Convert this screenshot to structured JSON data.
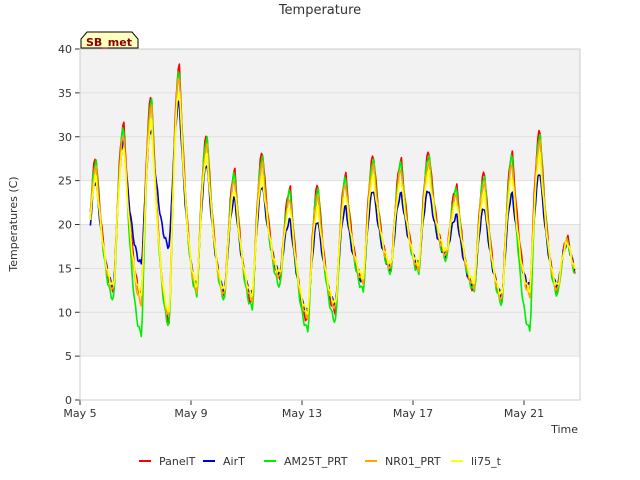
{
  "chart_data": {
    "type": "line",
    "title": "Temperature",
    "xlabel": "Time",
    "ylabel": "Temperatures (C)",
    "site_badge": "SB_met",
    "ylim": [
      0,
      40
    ],
    "yticks": [
      0,
      5,
      10,
      15,
      20,
      25,
      30,
      35,
      40
    ],
    "xlim": [
      "2021-05-05",
      "2021-05-23"
    ],
    "xticks": [
      {
        "date": "2021-05-05",
        "label": "May 5"
      },
      {
        "date": "2021-05-09",
        "label": "May 9"
      },
      {
        "date": "2021-05-13",
        "label": "May 13"
      },
      {
        "date": "2021-05-17",
        "label": "May 17"
      },
      {
        "date": "2021-05-21",
        "label": "May 21"
      }
    ],
    "grid": "alternating horizontal bands",
    "legend_position": "bottom",
    "x": [
      "2021-05-05",
      "2021-05-06",
      "2021-05-07",
      "2021-05-08",
      "2021-05-09",
      "2021-05-10",
      "2021-05-11",
      "2021-05-12",
      "2021-05-13",
      "2021-05-14",
      "2021-05-15",
      "2021-05-16",
      "2021-05-17",
      "2021-05-18",
      "2021-05-19",
      "2021-05-20",
      "2021-05-21",
      "2021-05-22"
    ],
    "series": [
      {
        "name": "PanelT",
        "color": "#ff0000",
        "daily_min": [
          11.5,
          12.5,
          12.0,
          9.0,
          12.5,
          12.0,
          11.0,
          14.0,
          9.0,
          10.0,
          13.5,
          15.0,
          15.0,
          16.5,
          12.5,
          11.5,
          12.5,
          12.5
        ],
        "daily_max": [
          27.7,
          31.5,
          34.8,
          38.2,
          30.3,
          26.2,
          28.3,
          24.2,
          24.6,
          25.7,
          27.9,
          27.4,
          28.3,
          24.4,
          26.0,
          28.2,
          30.8,
          18.5
        ]
      },
      {
        "name": "AirT",
        "color": "#0000cc",
        "daily_min": [
          12.5,
          13.0,
          15.5,
          17.5,
          13.0,
          12.5,
          12.0,
          14.5,
          10.0,
          11.0,
          13.5,
          15.0,
          15.5,
          16.5,
          13.0,
          12.0,
          13.0,
          13.0
        ],
        "daily_max": [
          25.0,
          29.5,
          31.0,
          34.0,
          27.0,
          23.0,
          24.5,
          20.5,
          20.5,
          22.0,
          24.0,
          23.5,
          24.0,
          21.0,
          22.0,
          23.5,
          26.0,
          18.0
        ]
      },
      {
        "name": "AM25T_PRT",
        "color": "#00ee00",
        "daily_min": [
          11.0,
          11.5,
          7.5,
          8.5,
          12.0,
          11.5,
          10.5,
          13.0,
          8.0,
          9.0,
          12.5,
          14.5,
          14.5,
          16.0,
          12.5,
          11.0,
          8.0,
          12.0
        ],
        "daily_max": [
          27.3,
          31.0,
          34.4,
          37.5,
          30.0,
          25.8,
          27.8,
          23.8,
          24.2,
          25.3,
          27.5,
          27.0,
          27.9,
          24.0,
          25.6,
          27.8,
          30.4,
          18.2
        ]
      },
      {
        "name": "NR01_PRT",
        "color": "#ffa500",
        "daily_min": [
          12.0,
          12.5,
          11.0,
          9.5,
          12.5,
          12.0,
          11.5,
          14.0,
          9.5,
          10.5,
          13.5,
          15.0,
          15.0,
          16.5,
          13.0,
          11.5,
          12.0,
          12.5
        ],
        "daily_max": [
          26.5,
          30.2,
          33.5,
          37.0,
          29.0,
          25.0,
          27.0,
          22.8,
          23.2,
          24.5,
          26.7,
          26.2,
          27.0,
          23.3,
          24.8,
          26.8,
          29.5,
          18.2
        ]
      },
      {
        "name": "li75_t",
        "color": "#ffff00",
        "daily_min": [
          12.5,
          13.0,
          12.0,
          10.0,
          13.0,
          12.5,
          12.0,
          14.5,
          10.0,
          11.0,
          14.0,
          15.5,
          15.5,
          17.0,
          13.5,
          12.0,
          12.5,
          13.0
        ],
        "daily_max": [
          25.5,
          29.0,
          32.0,
          35.5,
          28.0,
          24.0,
          25.5,
          22.0,
          22.0,
          23.5,
          25.5,
          25.0,
          26.0,
          22.5,
          23.5,
          25.5,
          28.0,
          18.0
        ]
      }
    ]
  }
}
